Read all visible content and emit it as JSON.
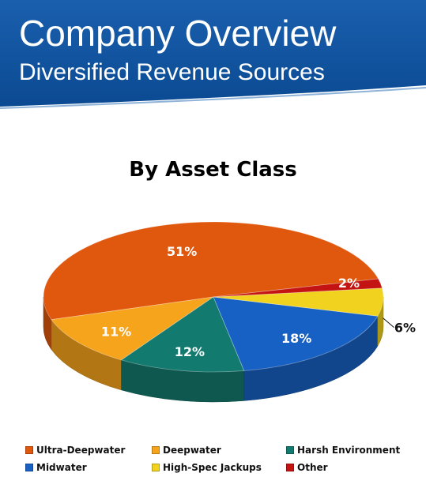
{
  "header": {
    "title": "Company Overview",
    "subtitle": "Diversified Revenue Sources"
  },
  "chart_data": {
    "type": "pie",
    "style": "3d",
    "title": "By Asset Class",
    "labels": [
      "Ultra-Deepwater",
      "Deepwater",
      "Harsh Environment",
      "Midwater",
      "High-Spec Jackups",
      "Other"
    ],
    "values": [
      51,
      11,
      12,
      18,
      6,
      2
    ],
    "data_labels": [
      "51%",
      "11%",
      "12%",
      "18%",
      "6%",
      "2%"
    ],
    "colors": [
      "#e0580e",
      "#f7a41d",
      "#137a6f",
      "#1861c4",
      "#f0d21f",
      "#c41313"
    ],
    "legend_position": "bottom"
  },
  "legend": {
    "items": [
      {
        "label": "Ultra-Deepwater",
        "color": "#e0580e"
      },
      {
        "label": "Deepwater",
        "color": "#f7a41d"
      },
      {
        "label": "Harsh Environment",
        "color": "#137a6f"
      },
      {
        "label": "Midwater",
        "color": "#1861c4"
      },
      {
        "label": "High-Spec Jackups",
        "color": "#f0d21f"
      },
      {
        "label": "Other",
        "color": "#c41313"
      }
    ]
  },
  "colors": {
    "header_blue": "#0d4d96",
    "header_accent": "#8fb3d8"
  }
}
